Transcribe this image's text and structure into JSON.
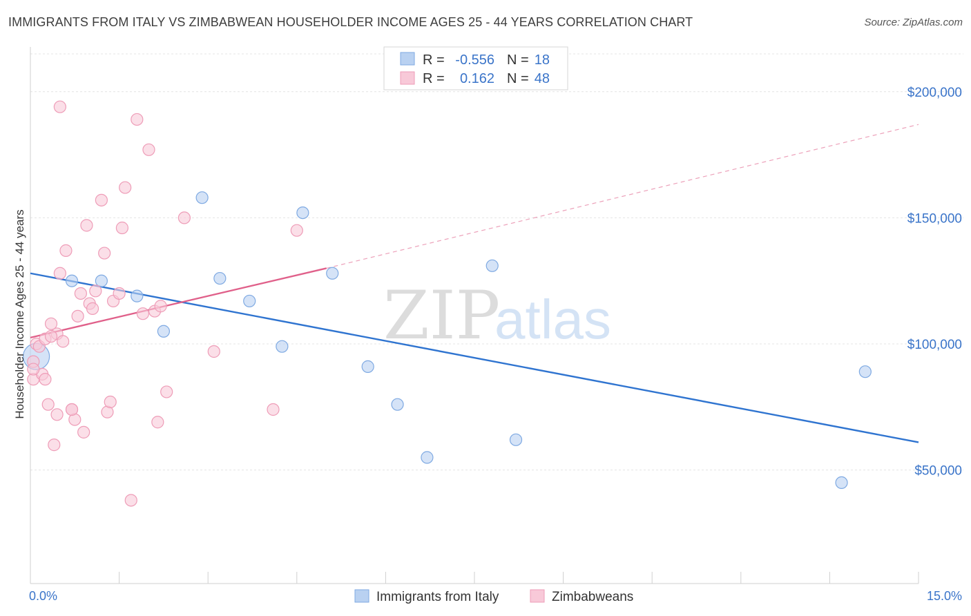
{
  "header": {
    "title": "IMMIGRANTS FROM ITALY VS ZIMBABWEAN HOUSEHOLDER INCOME AGES 25 - 44 YEARS CORRELATION CHART",
    "source": "Source: ZipAtlas.com"
  },
  "watermark": {
    "zip": "ZIP",
    "atlas": "atlas"
  },
  "chart_data": {
    "type": "scatter",
    "ylabel": "Householder Income Ages 25 - 44 years",
    "xlim": [
      0,
      15
    ],
    "ylim": [
      5000,
      215000
    ],
    "x_tick_labels": [
      "0.0%",
      "15.0%"
    ],
    "y_ticks": [
      {
        "value": 50000,
        "label": "$50,000"
      },
      {
        "value": 100000,
        "label": "$100,000"
      },
      {
        "value": 150000,
        "label": "$150,000"
      },
      {
        "value": 200000,
        "label": "$200,000"
      }
    ],
    "grid": true,
    "legend_position": "top-center",
    "legend": [
      {
        "r_label": "R =",
        "r_value": "-0.556",
        "n_label": "N =",
        "n_value": "18"
      },
      {
        "r_label": "R =",
        "r_value": "0.162",
        "n_label": "N =",
        "n_value": "48"
      }
    ],
    "series": [
      {
        "name": "Immigrants from Italy",
        "color": "#7ea9e2",
        "fill": "#b9d1f1",
        "line_color": "#2f74d0",
        "trend": {
          "x": [
            0.0,
            15.0
          ],
          "y": [
            128000,
            61000
          ]
        },
        "points": [
          {
            "x": 0.1,
            "y": 95000,
            "size": "large"
          },
          {
            "x": 0.7,
            "y": 125000
          },
          {
            "x": 1.2,
            "y": 125000
          },
          {
            "x": 1.8,
            "y": 119000
          },
          {
            "x": 2.25,
            "y": 105000
          },
          {
            "x": 2.9,
            "y": 158000
          },
          {
            "x": 3.2,
            "y": 126000
          },
          {
            "x": 3.7,
            "y": 117000
          },
          {
            "x": 4.25,
            "y": 99000
          },
          {
            "x": 4.6,
            "y": 152000
          },
          {
            "x": 5.1,
            "y": 128000
          },
          {
            "x": 5.7,
            "y": 91000
          },
          {
            "x": 6.2,
            "y": 76000
          },
          {
            "x": 6.7,
            "y": 55000
          },
          {
            "x": 7.8,
            "y": 131000
          },
          {
            "x": 8.2,
            "y": 62000
          },
          {
            "x": 13.7,
            "y": 45000
          },
          {
            "x": 14.1,
            "y": 89000
          }
        ]
      },
      {
        "name": "Zimbabweans",
        "color": "#ee9cb7",
        "fill": "#f8c9d8",
        "line_color": "#e0608a",
        "trend": {
          "x": [
            0.0,
            5.0
          ],
          "y": [
            102500,
            130000
          ]
        },
        "trend_extension": {
          "x": [
            5.0,
            15.0
          ],
          "y": [
            130000,
            187000
          ]
        },
        "points": [
          {
            "x": 0.05,
            "y": 93000
          },
          {
            "x": 0.05,
            "y": 86000
          },
          {
            "x": 0.1,
            "y": 100000
          },
          {
            "x": 0.15,
            "y": 99000
          },
          {
            "x": 0.2,
            "y": 88000
          },
          {
            "x": 0.25,
            "y": 102000
          },
          {
            "x": 0.3,
            "y": 76000
          },
          {
            "x": 0.35,
            "y": 108000
          },
          {
            "x": 0.4,
            "y": 60000
          },
          {
            "x": 0.45,
            "y": 104000
          },
          {
            "x": 0.5,
            "y": 128000
          },
          {
            "x": 0.55,
            "y": 101000
          },
          {
            "x": 0.6,
            "y": 137000
          },
          {
            "x": 0.7,
            "y": 74000
          },
          {
            "x": 0.75,
            "y": 70000
          },
          {
            "x": 0.8,
            "y": 111000
          },
          {
            "x": 0.85,
            "y": 120000
          },
          {
            "x": 0.9,
            "y": 65000
          },
          {
            "x": 1.0,
            "y": 116000
          },
          {
            "x": 1.1,
            "y": 121000
          },
          {
            "x": 1.2,
            "y": 157000
          },
          {
            "x": 1.25,
            "y": 136000
          },
          {
            "x": 1.3,
            "y": 73000
          },
          {
            "x": 1.35,
            "y": 77000
          },
          {
            "x": 1.4,
            "y": 117000
          },
          {
            "x": 1.5,
            "y": 120000
          },
          {
            "x": 1.55,
            "y": 146000
          },
          {
            "x": 1.6,
            "y": 162000
          },
          {
            "x": 1.8,
            "y": 189000
          },
          {
            "x": 1.9,
            "y": 112000
          },
          {
            "x": 2.0,
            "y": 177000
          },
          {
            "x": 2.1,
            "y": 113000
          },
          {
            "x": 2.15,
            "y": 69000
          },
          {
            "x": 2.2,
            "y": 115000
          },
          {
            "x": 2.3,
            "y": 81000
          },
          {
            "x": 2.6,
            "y": 150000
          },
          {
            "x": 3.1,
            "y": 97000
          },
          {
            "x": 4.1,
            "y": 74000
          },
          {
            "x": 4.5,
            "y": 145000
          },
          {
            "x": 0.95,
            "y": 147000
          },
          {
            "x": 0.7,
            "y": 74000
          },
          {
            "x": 0.45,
            "y": 72000
          },
          {
            "x": 0.25,
            "y": 86000
          },
          {
            "x": 0.05,
            "y": 90000
          },
          {
            "x": 0.5,
            "y": 194000
          },
          {
            "x": 1.7,
            "y": 38000
          },
          {
            "x": 1.05,
            "y": 114000
          },
          {
            "x": 0.35,
            "y": 103000
          }
        ]
      }
    ]
  }
}
